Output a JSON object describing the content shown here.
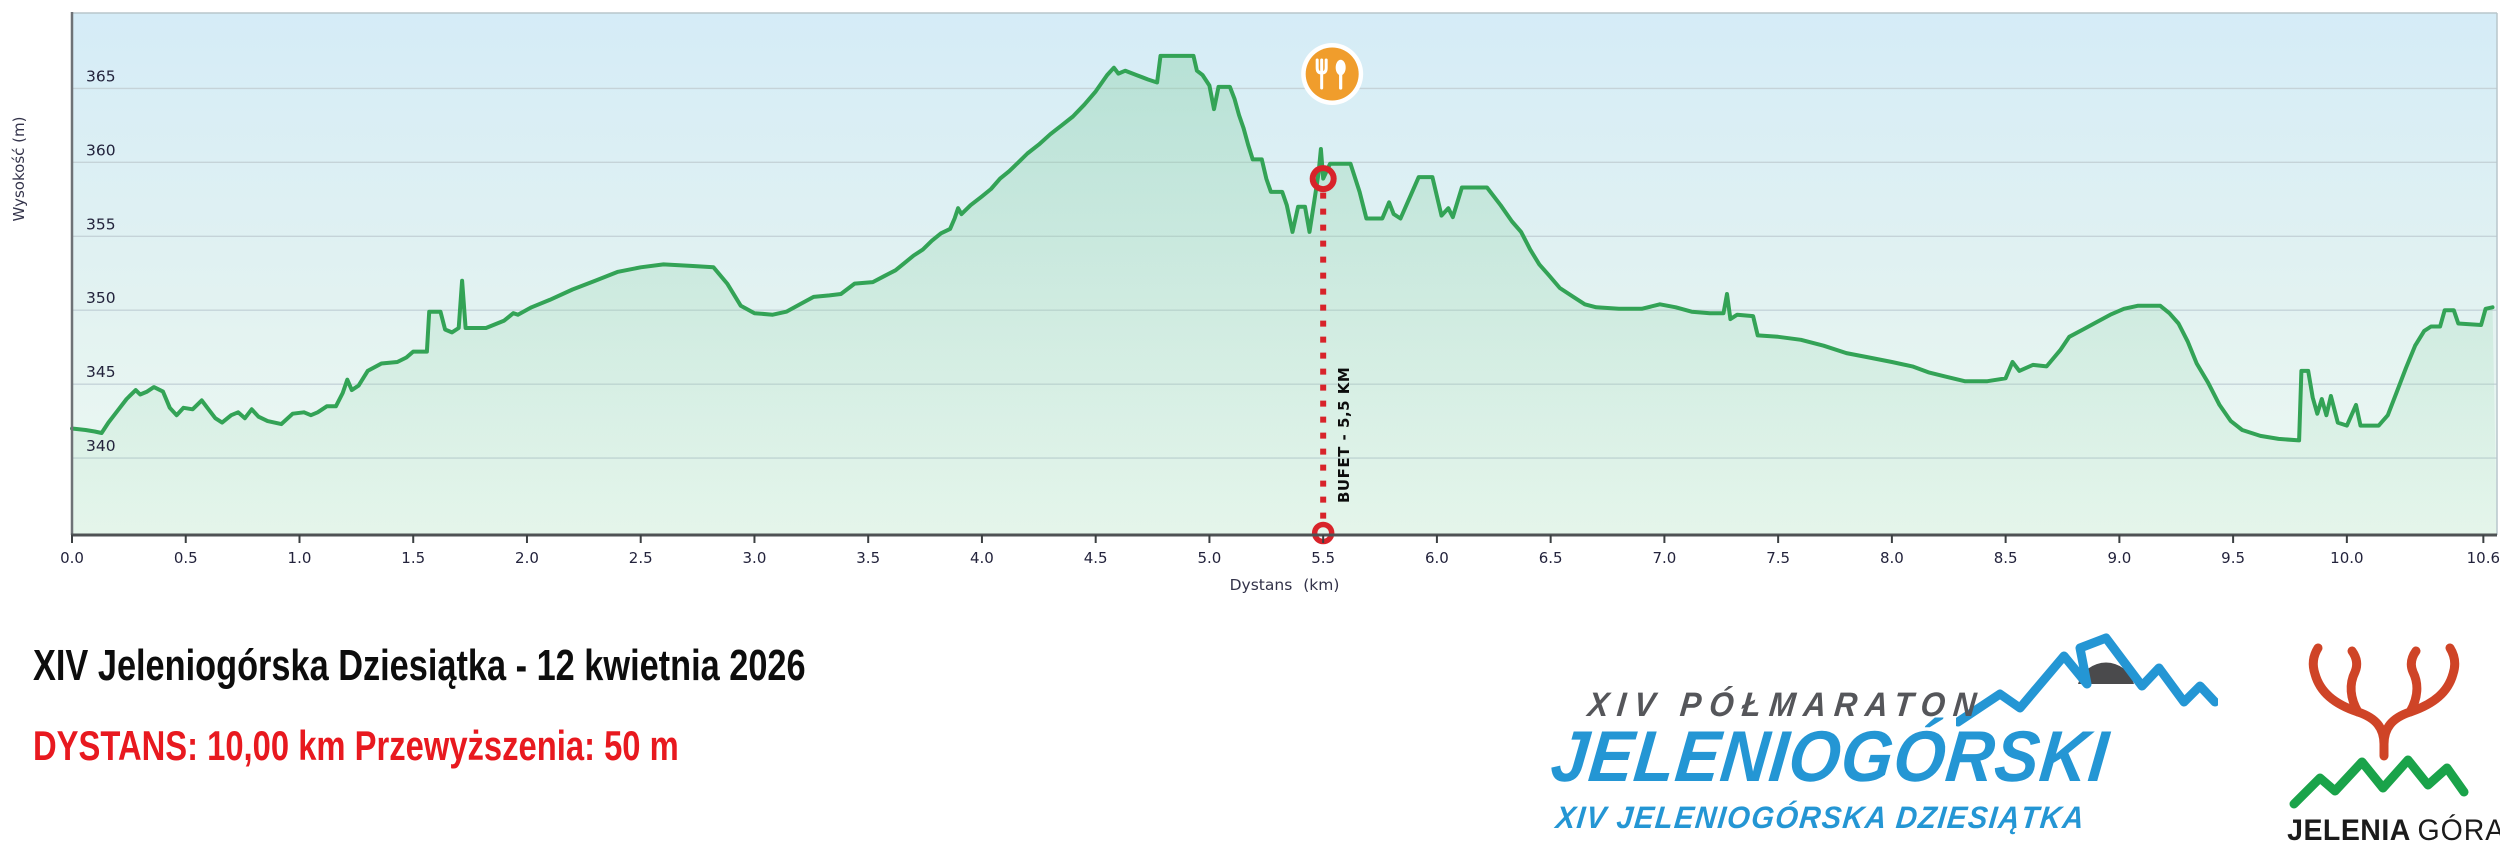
{
  "chart": {
    "y_axis_title": "Wysokość (m)",
    "x_axis_title": "Dystans (km)"
  },
  "chart_data": {
    "type": "area",
    "title": "",
    "xlabel": "Dystans (km)",
    "ylabel": "Wysokość (m)",
    "xlim": [
      0,
      10.66
    ],
    "ylim": [
      334.8,
      370.1
    ],
    "grid": "horizontal",
    "legend_position": "none",
    "yticks": [
      340,
      345,
      350,
      355,
      360,
      365
    ],
    "xticks": [
      {
        "v": 0.0,
        "label": "0.0"
      },
      {
        "v": 0.5,
        "label": "0.5"
      },
      {
        "v": 1.0,
        "label": "1.0"
      },
      {
        "v": 1.5,
        "label": "1.5"
      },
      {
        "v": 2.0,
        "label": "2.0"
      },
      {
        "v": 2.5,
        "label": "2.5"
      },
      {
        "v": 3.0,
        "label": "3.0"
      },
      {
        "v": 3.5,
        "label": "3.5"
      },
      {
        "v": 4.0,
        "label": "4.0"
      },
      {
        "v": 4.5,
        "label": "4.5"
      },
      {
        "v": 5.0,
        "label": "5.0"
      },
      {
        "v": 5.5,
        "label": "5.5"
      },
      {
        "v": 6.0,
        "label": "6.0"
      },
      {
        "v": 6.5,
        "label": "6.5"
      },
      {
        "v": 7.0,
        "label": "7.0"
      },
      {
        "v": 7.5,
        "label": "7.5"
      },
      {
        "v": 8.0,
        "label": "8.0"
      },
      {
        "v": 8.5,
        "label": "8.5"
      },
      {
        "v": 9.0,
        "label": "9.0"
      },
      {
        "v": 9.5,
        "label": "9.5"
      },
      {
        "v": 10.0,
        "label": "10.0"
      },
      {
        "v": 10.6,
        "label": "10.6"
      }
    ],
    "series": [
      {
        "name": "Wysokość",
        "points": [
          [
            0.0,
            342.0
          ],
          [
            0.06,
            341.9
          ],
          [
            0.1,
            341.8
          ],
          [
            0.13,
            341.7
          ],
          [
            0.16,
            342.4
          ],
          [
            0.2,
            343.2
          ],
          [
            0.24,
            344.0
          ],
          [
            0.28,
            344.6
          ],
          [
            0.3,
            344.3
          ],
          [
            0.33,
            344.5
          ],
          [
            0.36,
            344.8
          ],
          [
            0.4,
            344.5
          ],
          [
            0.43,
            343.4
          ],
          [
            0.46,
            342.9
          ],
          [
            0.49,
            343.4
          ],
          [
            0.53,
            343.3
          ],
          [
            0.57,
            343.9
          ],
          [
            0.6,
            343.3
          ],
          [
            0.63,
            342.7
          ],
          [
            0.66,
            342.4
          ],
          [
            0.7,
            342.9
          ],
          [
            0.73,
            343.1
          ],
          [
            0.76,
            342.7
          ],
          [
            0.79,
            343.3
          ],
          [
            0.82,
            342.8
          ],
          [
            0.86,
            342.5
          ],
          [
            0.92,
            342.3
          ],
          [
            0.97,
            343.0
          ],
          [
            1.02,
            343.1
          ],
          [
            1.05,
            342.9
          ],
          [
            1.08,
            343.1
          ],
          [
            1.12,
            343.5
          ],
          [
            1.16,
            343.5
          ],
          [
            1.19,
            344.4
          ],
          [
            1.21,
            345.3
          ],
          [
            1.23,
            344.6
          ],
          [
            1.26,
            344.9
          ],
          [
            1.3,
            345.9
          ],
          [
            1.36,
            346.4
          ],
          [
            1.43,
            346.5
          ],
          [
            1.47,
            346.8
          ],
          [
            1.5,
            347.2
          ],
          [
            1.56,
            347.2
          ],
          [
            1.57,
            349.9
          ],
          [
            1.62,
            349.9
          ],
          [
            1.64,
            348.7
          ],
          [
            1.67,
            348.5
          ],
          [
            1.7,
            348.8
          ],
          [
            1.715,
            352.0
          ],
          [
            1.73,
            348.8
          ],
          [
            1.82,
            348.8
          ],
          [
            1.9,
            349.3
          ],
          [
            1.94,
            349.8
          ],
          [
            1.96,
            349.7
          ],
          [
            2.02,
            350.2
          ],
          [
            2.1,
            350.7
          ],
          [
            2.2,
            351.4
          ],
          [
            2.3,
            352.0
          ],
          [
            2.4,
            352.6
          ],
          [
            2.5,
            352.9
          ],
          [
            2.6,
            353.1
          ],
          [
            2.72,
            353.0
          ],
          [
            2.82,
            352.9
          ],
          [
            2.88,
            351.8
          ],
          [
            2.94,
            350.3
          ],
          [
            3.0,
            349.8
          ],
          [
            3.08,
            349.7
          ],
          [
            3.14,
            349.9
          ],
          [
            3.2,
            350.4
          ],
          [
            3.26,
            350.9
          ],
          [
            3.33,
            351.0
          ],
          [
            3.38,
            351.1
          ],
          [
            3.44,
            351.8
          ],
          [
            3.52,
            351.9
          ],
          [
            3.57,
            352.3
          ],
          [
            3.62,
            352.7
          ],
          [
            3.66,
            353.2
          ],
          [
            3.7,
            353.7
          ],
          [
            3.74,
            354.1
          ],
          [
            3.78,
            354.7
          ],
          [
            3.82,
            355.2
          ],
          [
            3.86,
            355.5
          ],
          [
            3.88,
            356.2
          ],
          [
            3.895,
            356.9
          ],
          [
            3.91,
            356.5
          ],
          [
            3.95,
            357.1
          ],
          [
            4.0,
            357.7
          ],
          [
            4.04,
            358.2
          ],
          [
            4.08,
            358.9
          ],
          [
            4.12,
            359.4
          ],
          [
            4.16,
            360.0
          ],
          [
            4.2,
            360.6
          ],
          [
            4.25,
            361.2
          ],
          [
            4.3,
            361.9
          ],
          [
            4.35,
            362.5
          ],
          [
            4.4,
            363.1
          ],
          [
            4.45,
            363.9
          ],
          [
            4.5,
            364.8
          ],
          [
            4.55,
            365.9
          ],
          [
            4.58,
            366.4
          ],
          [
            4.6,
            366.0
          ],
          [
            4.63,
            366.2
          ],
          [
            4.68,
            365.9
          ],
          [
            4.73,
            365.6
          ],
          [
            4.77,
            365.4
          ],
          [
            4.785,
            367.2
          ],
          [
            4.93,
            367.2
          ],
          [
            4.945,
            366.2
          ],
          [
            4.97,
            365.9
          ],
          [
            5.0,
            365.2
          ],
          [
            5.02,
            363.6
          ],
          [
            5.04,
            365.1
          ],
          [
            5.09,
            365.1
          ],
          [
            5.11,
            364.3
          ],
          [
            5.13,
            363.2
          ],
          [
            5.15,
            362.3
          ],
          [
            5.17,
            361.2
          ],
          [
            5.19,
            360.2
          ],
          [
            5.23,
            360.2
          ],
          [
            5.25,
            358.9
          ],
          [
            5.27,
            358.0
          ],
          [
            5.32,
            358.0
          ],
          [
            5.34,
            357.1
          ],
          [
            5.365,
            355.3
          ],
          [
            5.39,
            357.0
          ],
          [
            5.42,
            357.0
          ],
          [
            5.44,
            355.3
          ],
          [
            5.46,
            357.3
          ],
          [
            5.48,
            359.3
          ],
          [
            5.49,
            360.9
          ],
          [
            5.5,
            358.9
          ],
          [
            5.53,
            359.9
          ],
          [
            5.62,
            359.9
          ],
          [
            5.66,
            358.0
          ],
          [
            5.69,
            356.2
          ],
          [
            5.76,
            356.2
          ],
          [
            5.79,
            357.3
          ],
          [
            5.81,
            356.5
          ],
          [
            5.84,
            356.2
          ],
          [
            5.88,
            357.6
          ],
          [
            5.92,
            359.0
          ],
          [
            5.98,
            359.0
          ],
          [
            6.02,
            356.4
          ],
          [
            6.05,
            356.9
          ],
          [
            6.07,
            356.3
          ],
          [
            6.11,
            358.3
          ],
          [
            6.22,
            358.3
          ],
          [
            6.28,
            357.1
          ],
          [
            6.33,
            356.0
          ],
          [
            6.37,
            355.3
          ],
          [
            6.41,
            354.1
          ],
          [
            6.45,
            353.1
          ],
          [
            6.49,
            352.4
          ],
          [
            6.54,
            351.5
          ],
          [
            6.6,
            350.9
          ],
          [
            6.65,
            350.4
          ],
          [
            6.7,
            350.2
          ],
          [
            6.8,
            350.1
          ],
          [
            6.9,
            350.1
          ],
          [
            6.98,
            350.4
          ],
          [
            7.05,
            350.2
          ],
          [
            7.12,
            349.9
          ],
          [
            7.2,
            349.8
          ],
          [
            7.26,
            349.8
          ],
          [
            7.275,
            351.1
          ],
          [
            7.29,
            349.4
          ],
          [
            7.32,
            349.7
          ],
          [
            7.39,
            349.6
          ],
          [
            7.41,
            348.3
          ],
          [
            7.5,
            348.2
          ],
          [
            7.6,
            348.0
          ],
          [
            7.7,
            347.6
          ],
          [
            7.8,
            347.1
          ],
          [
            7.9,
            346.8
          ],
          [
            8.0,
            346.5
          ],
          [
            8.09,
            346.2
          ],
          [
            8.16,
            345.8
          ],
          [
            8.24,
            345.5
          ],
          [
            8.32,
            345.2
          ],
          [
            8.42,
            345.2
          ],
          [
            8.5,
            345.4
          ],
          [
            8.53,
            346.5
          ],
          [
            8.56,
            345.9
          ],
          [
            8.62,
            346.3
          ],
          [
            8.68,
            346.2
          ],
          [
            8.74,
            347.3
          ],
          [
            8.78,
            348.2
          ],
          [
            8.84,
            348.7
          ],
          [
            8.9,
            349.2
          ],
          [
            8.96,
            349.7
          ],
          [
            9.02,
            350.1
          ],
          [
            9.08,
            350.3
          ],
          [
            9.18,
            350.3
          ],
          [
            9.22,
            349.8
          ],
          [
            9.26,
            349.1
          ],
          [
            9.3,
            347.9
          ],
          [
            9.34,
            346.4
          ],
          [
            9.39,
            345.1
          ],
          [
            9.44,
            343.6
          ],
          [
            9.49,
            342.5
          ],
          [
            9.54,
            341.9
          ],
          [
            9.62,
            341.5
          ],
          [
            9.7,
            341.3
          ],
          [
            9.79,
            341.2
          ],
          [
            9.8,
            345.9
          ],
          [
            9.83,
            345.9
          ],
          [
            9.85,
            344.1
          ],
          [
            9.87,
            343.0
          ],
          [
            9.89,
            344.0
          ],
          [
            9.91,
            342.9
          ],
          [
            9.93,
            344.2
          ],
          [
            9.96,
            342.4
          ],
          [
            10.0,
            342.2
          ],
          [
            10.04,
            343.6
          ],
          [
            10.06,
            342.2
          ],
          [
            10.14,
            342.2
          ],
          [
            10.18,
            342.9
          ],
          [
            10.22,
            344.5
          ],
          [
            10.26,
            346.1
          ],
          [
            10.3,
            347.6
          ],
          [
            10.34,
            348.6
          ],
          [
            10.37,
            348.9
          ],
          [
            10.41,
            348.9
          ],
          [
            10.43,
            350.0
          ],
          [
            10.47,
            350.0
          ],
          [
            10.49,
            349.1
          ],
          [
            10.59,
            349.0
          ],
          [
            10.61,
            350.1
          ],
          [
            10.64,
            350.2
          ]
        ]
      }
    ],
    "marker": {
      "km": 5.5,
      "elevation": 358.9,
      "label": "BUFET - 5,5 KM",
      "icon": "restaurant-icon",
      "line_color": "#d8232a",
      "icon_bg": "#f09d2c"
    },
    "colors": {
      "line": "#33a356",
      "fill_top": "rgba(132,206,161,0.38)",
      "fill_bottom": "rgba(170,223,190,0.14)",
      "bg_top": "#d5ecf7",
      "bg_mid": "#e2f2f1",
      "bg_bottom": "#eef9f2",
      "grid": "#c5d3d8",
      "axis": "#4e5254",
      "tick_text": "#23233c",
      "axis_title_text": "#33334a"
    }
  },
  "footer": {
    "title": "XIV Jeleniogórska Dziesiątka - 12 kwietnia 2026",
    "stats_line": "DYSTANS: 10,00 km  Przewyższenia: 50 m",
    "stats_color": "#e8191f"
  },
  "logos": {
    "polmaraton": {
      "top": "XIV PÓŁMARATON",
      "main": "JELENIOGÓRSKI",
      "sub": "XIV JELENIOGÓRSKA DZIESIĄTKA",
      "blue": "#2496d4",
      "dark": "#55565a"
    },
    "jelenia_gora": {
      "name_bold": "JELENIA",
      "name_light": "GÓRA",
      "antler_color": "#cf4427",
      "mountain_color": "#1aa34a"
    }
  }
}
